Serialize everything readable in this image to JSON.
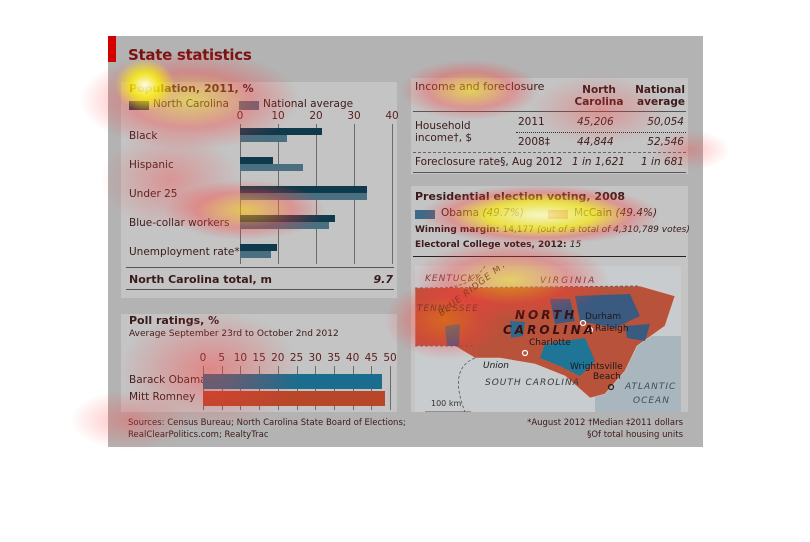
{
  "title": "State statistics",
  "colors": {
    "accent": "#d40000",
    "nc_bar": "#0e3a4c",
    "nat_bar": "#4a6f80",
    "obama": "#1a6d8f",
    "romney": "#b8472a"
  },
  "population": {
    "heading": "Population, 2011, %",
    "legend": [
      {
        "label": "North Carolina"
      },
      {
        "label": "National average"
      }
    ],
    "total_label": "North Carolina total, m",
    "total_value": "9.7"
  },
  "poll": {
    "heading": "Poll ratings, %",
    "subheading": "Average September 23rd to October 2nd 2012"
  },
  "income": {
    "heading": "Income and foreclosure",
    "col_nc": "North Carolina",
    "col_nat": "National average",
    "row1_label": "Household income†, $",
    "rows": [
      {
        "year": "2011",
        "nc": "45,206",
        "nat": "50,054"
      },
      {
        "year": "2008‡",
        "nc": "44,844",
        "nat": "52,546"
      }
    ],
    "foreclosure_label": "Foreclosure rate§, Aug 2012",
    "foreclosure_nc": "1 in 1,621",
    "foreclosure_nat": "1 in 681"
  },
  "election": {
    "heading": "Presidential election voting, 2008",
    "obama_label": "Obama",
    "obama_pct": "(49.7%)",
    "mccain_label": "McCain",
    "mccain_pct": "(49.4%)",
    "margin_label": "Winning margin:",
    "margin_value": "14,177",
    "margin_note": "(out of a total of 4,310,789 votes)",
    "ec_label": "Electoral College votes, 2012:",
    "ec_value": "15"
  },
  "map": {
    "labels": {
      "kentucky": "KENTUCKY",
      "virginia": "VIRGINIA",
      "tennessee": "TENNESSEE",
      "blue_ridge": "BLUE RIDGE MTS.",
      "nc1": "NORTH",
      "nc2": "CAROLINA",
      "durham": "Durham",
      "raleigh": "Raleigh",
      "charlotte": "Charlotte",
      "union": "Union",
      "wrightsville": "Wrightsville",
      "beach": "Beach",
      "south_carolina": "SOUTH CAROLINA",
      "atlantic": "ATLANTIC",
      "ocean": "OCEAN",
      "scale": "100 km"
    }
  },
  "footer": {
    "sources1": "Sources: Census Bureau; North Carolina State Board of Elections;",
    "sources2": "RealClearPolitics.com; RealtyTrac",
    "note1": "*August 2012  †Median  ‡2011 dollars",
    "note2": "§Of total housing units"
  },
  "chart_data": [
    {
      "type": "bar",
      "title": "Population, 2011, %",
      "orientation": "horizontal",
      "categories": [
        "Black",
        "Hispanic",
        "Under 25",
        "Blue-collar workers",
        "Unemployment rate*"
      ],
      "series": [
        {
          "name": "North Carolina",
          "values": [
            21.6,
            8.7,
            33.4,
            25.0,
            9.7
          ]
        },
        {
          "name": "National average",
          "values": [
            12.4,
            16.6,
            33.4,
            23.4,
            8.2
          ]
        }
      ],
      "xlim": [
        0,
        40
      ],
      "xticks": [
        0,
        10,
        20,
        30,
        40
      ],
      "grid": true,
      "legend": "top-left"
    },
    {
      "type": "bar",
      "title": "Poll ratings, %",
      "subtitle": "Average September 23rd to October 2nd 2012",
      "orientation": "horizontal",
      "categories": [
        "Barack Obama",
        "Mitt Romney"
      ],
      "values": [
        47.9,
        48.7
      ],
      "xlim": [
        0,
        50
      ],
      "xticks": [
        0,
        5,
        10,
        15,
        20,
        25,
        30,
        35,
        40,
        45,
        50
      ]
    }
  ]
}
